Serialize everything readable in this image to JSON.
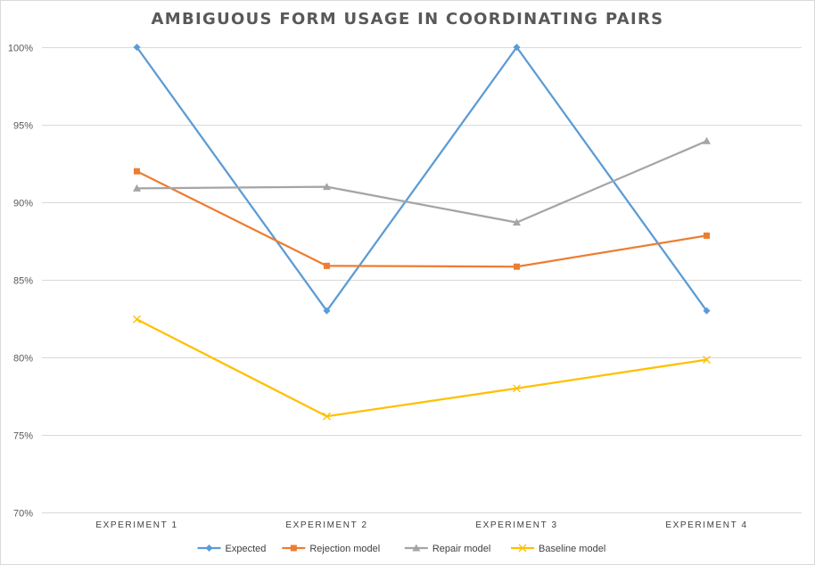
{
  "chart_data": {
    "type": "line",
    "title": "AMBIGUOUS FORM USAGE IN COORDINATING PAIRS",
    "xlabel": "",
    "ylabel": "",
    "categories": [
      "EXPERIMENT 1",
      "EXPERIMENT 2",
      "EXPERIMENT 3",
      "EXPERIMENT 4"
    ],
    "ylim": [
      70,
      100
    ],
    "y_ticks": [
      70,
      75,
      80,
      85,
      90,
      95,
      100
    ],
    "y_tick_labels": [
      "70%",
      "75%",
      "80%",
      "85%",
      "90%",
      "95%",
      "100%"
    ],
    "grid": true,
    "legend_position": "bottom",
    "series": [
      {
        "name": "Expected",
        "values": [
          100,
          83,
          100,
          83
        ],
        "color": "#5b9bd5",
        "marker": "diamond"
      },
      {
        "name": "Rejection model",
        "values": [
          92.0,
          85.9,
          85.85,
          87.85
        ],
        "color": "#ed7d31",
        "marker": "square"
      },
      {
        "name": "Repair model",
        "values": [
          90.9,
          91.0,
          88.7,
          93.95
        ],
        "color": "#a5a5a5",
        "marker": "triangle"
      },
      {
        "name": "Baseline model",
        "values": [
          82.45,
          76.2,
          78.0,
          79.85
        ],
        "color": "#ffc000",
        "marker": "x"
      }
    ]
  }
}
